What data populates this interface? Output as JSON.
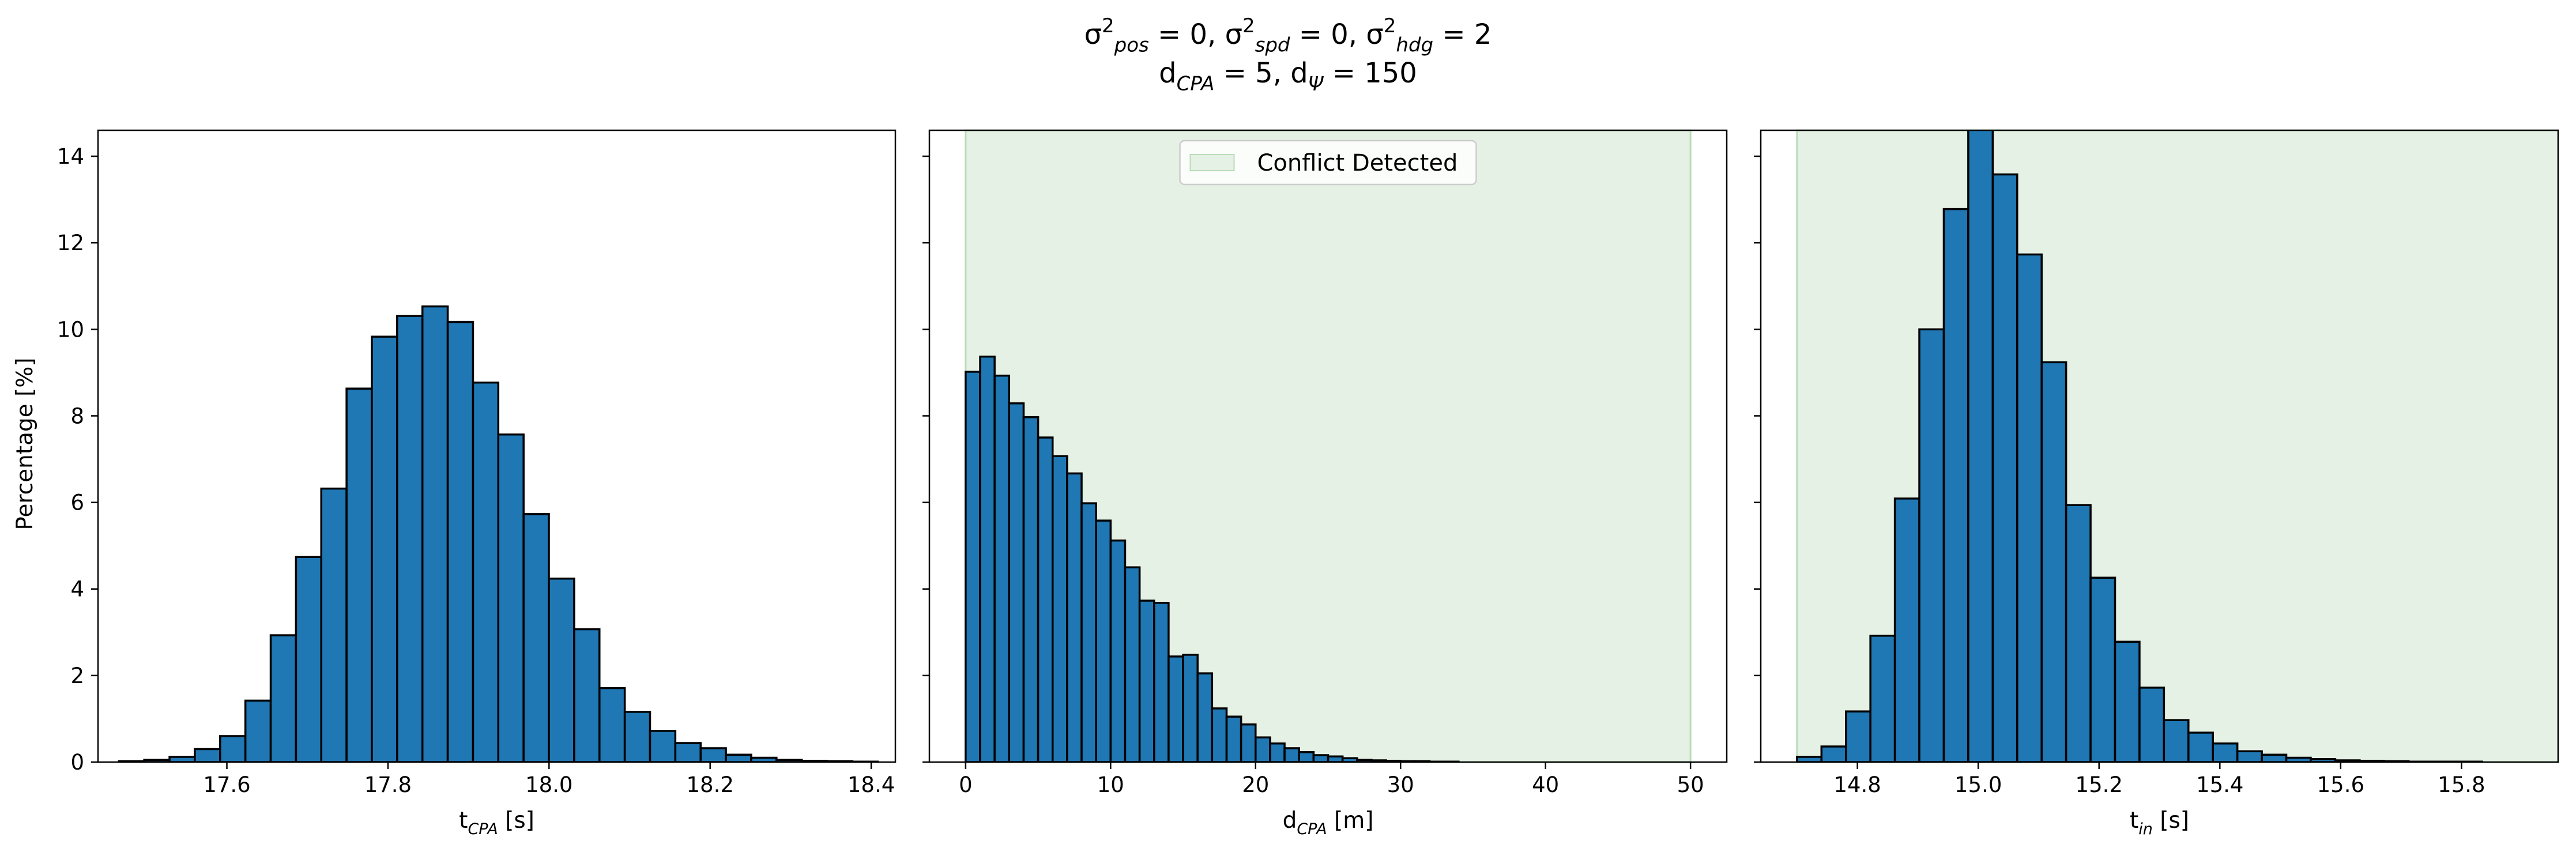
{
  "title": {
    "line1": [
      {
        "t": "σ"
      },
      {
        "sup": "2"
      },
      {
        "sub": "pos"
      },
      {
        "t": " = 0, σ"
      },
      {
        "sup": "2"
      },
      {
        "sub": "spd"
      },
      {
        "t": " = 0, σ"
      },
      {
        "sup": "2"
      },
      {
        "sub": "hdg"
      },
      {
        "t": " = 2"
      }
    ],
    "line2": [
      {
        "t": "d"
      },
      {
        "sub": "CPA"
      },
      {
        "t": " = 5, d"
      },
      {
        "sub": "Ψ"
      },
      {
        "t": " = 150"
      }
    ]
  },
  "ylabel": "Percentage [%]",
  "colors": {
    "bar_fill": "#1f77b4",
    "bar_edge": "#000000",
    "conflict_fill": "#e5f1e4",
    "conflict_edge": "#b9dcb7"
  },
  "chart_data": [
    {
      "type": "bar",
      "histogram": true,
      "xlabel": [
        {
          "t": "t"
        },
        {
          "sub": "CPA"
        },
        {
          "t": " [s]"
        }
      ],
      "xlim": [
        17.44,
        18.43
      ],
      "ylim": [
        0,
        14.6
      ],
      "xticks": [
        "17.6",
        "17.8",
        "18.0",
        "18.2",
        "18.4"
      ],
      "xtick_values": [
        17.6,
        17.8,
        18.0,
        18.2,
        18.4
      ],
      "yticks": [
        "0",
        "2",
        "4",
        "6",
        "8",
        "10",
        "12",
        "14"
      ],
      "ytick_values": [
        0,
        2,
        4,
        6,
        8,
        10,
        12,
        14
      ],
      "bin_start": 17.466,
      "bin_width": 0.0314,
      "values": [
        0.02,
        0.05,
        0.12,
        0.3,
        0.6,
        1.42,
        2.93,
        4.74,
        6.32,
        8.63,
        9.83,
        10.31,
        10.53,
        10.17,
        8.77,
        7.57,
        5.73,
        4.24,
        3.07,
        1.71,
        1.16,
        0.72,
        0.44,
        0.32,
        0.17,
        0.1,
        0.05,
        0.03,
        0.02,
        0.01
      ],
      "conflict_region": null,
      "legend": null
    },
    {
      "type": "bar",
      "histogram": true,
      "xlabel": [
        {
          "t": "d"
        },
        {
          "sub": "CPA"
        },
        {
          "t": " [m]"
        }
      ],
      "xlim": [
        -2.5,
        52.5
      ],
      "ylim": [
        0,
        14.6
      ],
      "xticks": [
        "0",
        "10",
        "20",
        "30",
        "40",
        "50"
      ],
      "xtick_values": [
        0,
        10,
        20,
        30,
        40,
        50
      ],
      "yticks": [],
      "ytick_values": [
        0,
        2,
        4,
        6,
        8,
        10,
        12,
        14
      ],
      "bin_start": 0,
      "bin_width": 1.0,
      "values": [
        9.02,
        9.37,
        8.93,
        8.29,
        7.97,
        7.5,
        7.07,
        6.67,
        5.98,
        5.58,
        5.12,
        4.5,
        3.73,
        3.68,
        2.44,
        2.48,
        2.05,
        1.24,
        1.05,
        0.87,
        0.57,
        0.43,
        0.32,
        0.23,
        0.16,
        0.13,
        0.09,
        0.05,
        0.04,
        0.03,
        0.02,
        0.02,
        0.01,
        0.01
      ],
      "conflict_region": [
        0,
        50
      ],
      "legend": {
        "label": "Conflict Detected",
        "position": "upper center"
      }
    },
    {
      "type": "bar",
      "histogram": true,
      "xlabel": [
        {
          "t": "t"
        },
        {
          "sub": "in"
        },
        {
          "t": " [s]"
        }
      ],
      "xlim": [
        14.64,
        15.96
      ],
      "ylim": [
        0,
        14.6
      ],
      "xticks": [
        "14.8",
        "15.0",
        "15.2",
        "15.4",
        "15.6",
        "15.8"
      ],
      "xtick_values": [
        14.8,
        15.0,
        15.2,
        15.4,
        15.6,
        15.8
      ],
      "yticks": [],
      "ytick_values": [
        0,
        2,
        4,
        6,
        8,
        10,
        12,
        14
      ],
      "bin_start": 14.7,
      "bin_width": 0.0405,
      "values": [
        0.12,
        0.36,
        1.17,
        2.92,
        6.09,
        10.0,
        12.78,
        14.7,
        13.58,
        11.73,
        9.24,
        5.94,
        4.26,
        2.78,
        1.72,
        0.97,
        0.68,
        0.43,
        0.25,
        0.17,
        0.1,
        0.07,
        0.04,
        0.03,
        0.02,
        0.01,
        0.01,
        0.01
      ],
      "conflict_region": [
        14.7,
        15.96
      ],
      "legend": null
    }
  ]
}
